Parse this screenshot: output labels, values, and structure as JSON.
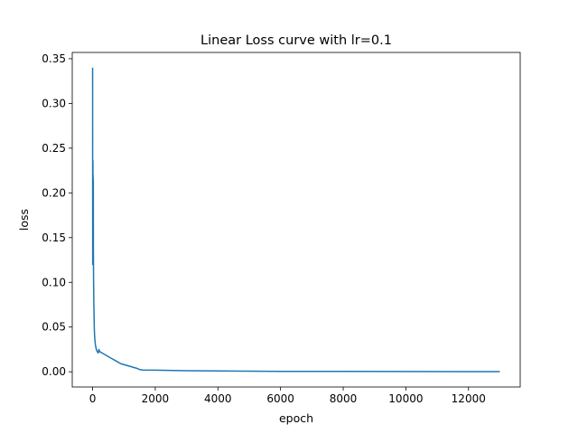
{
  "chart_data": {
    "type": "line",
    "title": "Linear Loss curve with lr=0.1",
    "xlabel": "epoch",
    "ylabel": "loss",
    "xlim": [
      -650,
      13650
    ],
    "ylim": [
      -0.017,
      0.357
    ],
    "grid": false,
    "xticks": [
      0,
      2000,
      4000,
      6000,
      8000,
      10000,
      12000
    ],
    "xtick_labels": [
      "0",
      "2000",
      "4000",
      "6000",
      "8000",
      "10000",
      "12000"
    ],
    "yticks": [
      0.0,
      0.05,
      0.1,
      0.15,
      0.2,
      0.25,
      0.3,
      0.35
    ],
    "ytick_labels": [
      "0.00",
      "0.05",
      "0.10",
      "0.15",
      "0.20",
      "0.25",
      "0.30",
      "0.35"
    ],
    "series": [
      {
        "color": "#1f77b4",
        "x": [
          0,
          3,
          5,
          8,
          10,
          12,
          15,
          18,
          20,
          22,
          25,
          28,
          30,
          35,
          40,
          45,
          50,
          55,
          60,
          70,
          80,
          90,
          100,
          120,
          140,
          160,
          180,
          200,
          220,
          250,
          300,
          350,
          400,
          500,
          600,
          700,
          800,
          900,
          1000,
          1100,
          1200,
          1300,
          1400,
          1500,
          1600,
          2000,
          3000,
          4000,
          5000,
          6000,
          8000,
          10000,
          12000,
          13000
        ],
        "y": [
          0.34,
          0.12,
          0.2,
          0.17,
          0.236,
          0.165,
          0.22,
          0.2,
          0.16,
          0.215,
          0.14,
          0.12,
          0.105,
          0.09,
          0.075,
          0.065,
          0.055,
          0.048,
          0.043,
          0.037,
          0.033,
          0.03,
          0.028,
          0.025,
          0.023,
          0.022,
          0.021,
          0.025,
          0.023,
          0.022,
          0.021,
          0.02,
          0.019,
          0.017,
          0.015,
          0.013,
          0.011,
          0.009,
          0.008,
          0.007,
          0.006,
          0.005,
          0.004,
          0.0025,
          0.002,
          0.0018,
          0.0012,
          0.0009,
          0.0007,
          0.0005,
          0.0004,
          0.0003,
          0.0002,
          0.0002
        ]
      }
    ]
  }
}
